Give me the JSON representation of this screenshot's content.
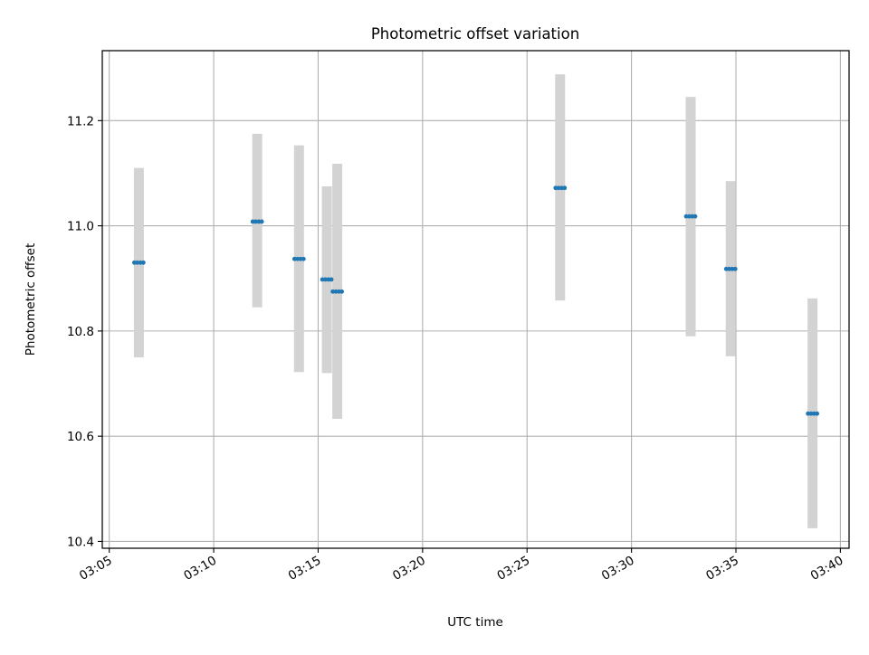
{
  "chart_data": {
    "type": "scatter",
    "title": "Photometric offset variation",
    "xlabel": "UTC time",
    "ylabel": "Photometric offset",
    "x_ticks": [
      "03:05",
      "03:10",
      "03:15",
      "03:20",
      "03:25",
      "03:30",
      "03:35",
      "03:40"
    ],
    "y_ticks": [
      "10.4",
      "10.6",
      "10.8",
      "11.0",
      "11.2"
    ],
    "xlim": [
      "03:04:40",
      "03:40:25"
    ],
    "ylim": [
      10.387,
      11.333
    ],
    "grid": true,
    "points": [
      {
        "x": "03:06:25",
        "y": 10.93,
        "err_low": 10.75,
        "err_high": 11.11
      },
      {
        "x": "03:12:05",
        "y": 11.008,
        "err_low": 10.845,
        "err_high": 11.175
      },
      {
        "x": "03:14:05",
        "y": 10.937,
        "err_low": 10.722,
        "err_high": 11.153
      },
      {
        "x": "03:15:25",
        "y": 10.898,
        "err_low": 10.72,
        "err_high": 11.075
      },
      {
        "x": "03:15:55",
        "y": 10.875,
        "err_low": 10.633,
        "err_high": 11.118
      },
      {
        "x": "03:26:35",
        "y": 11.072,
        "err_low": 10.858,
        "err_high": 11.288
      },
      {
        "x": "03:32:50",
        "y": 11.018,
        "err_low": 10.79,
        "err_high": 11.245
      },
      {
        "x": "03:34:45",
        "y": 10.918,
        "err_low": 10.752,
        "err_high": 11.085
      },
      {
        "x": "03:38:40",
        "y": 10.643,
        "err_low": 10.425,
        "err_high": 10.862
      }
    ],
    "colors": {
      "point": "#1f77b4",
      "errorbar": "#d3d3d3",
      "grid": "#b0b0b0",
      "axes": "#000000"
    }
  }
}
